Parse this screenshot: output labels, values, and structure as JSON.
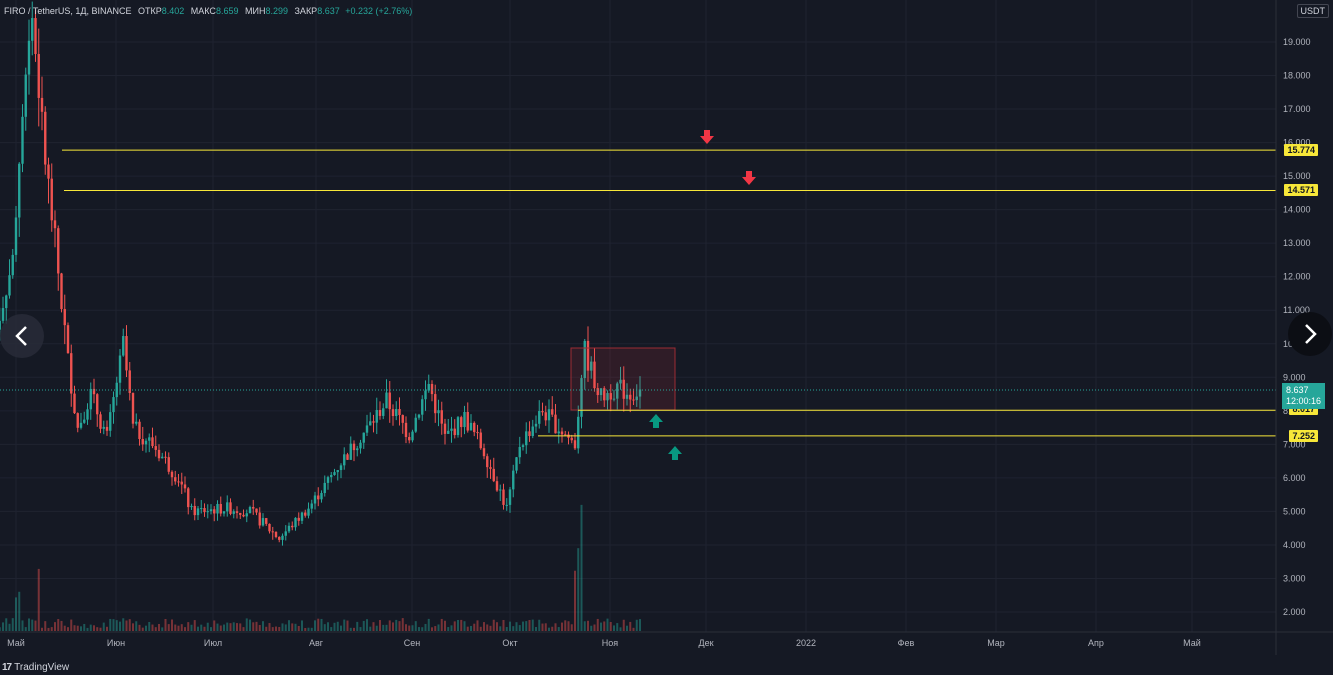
{
  "header": {
    "symbol": "FIRO / TetherUS, 1Д, BINANCE",
    "open_label": "ОТКР",
    "open": "8.402",
    "high_label": "МАКС",
    "high": "8.659",
    "low_label": "МИН",
    "low": "8.299",
    "close_label": "ЗАКР",
    "close": "8.637",
    "change": "+0.232 (+2.76%)"
  },
  "currency": "USDT",
  "brand": "TradingView",
  "current_price": {
    "value": "8.637",
    "countdown": "12:00:16"
  },
  "levels": [
    {
      "value": 15.774,
      "label": "15.774"
    },
    {
      "value": 14.571,
      "label": "14.571"
    },
    {
      "value": 8.017,
      "label": "8.017"
    },
    {
      "value": 7.252,
      "label": "7.252"
    }
  ],
  "colors": {
    "background": "#151924",
    "up": "#26a69a",
    "down": "#ef5350",
    "level_line": "#f7e739",
    "arrow_down": "#f23645",
    "arrow_up": "#089981",
    "grid": "#1f2330"
  },
  "chart_data": {
    "type": "candlestick",
    "y_axis_ticks": [
      "2.000",
      "3.000",
      "4.000",
      "5.000",
      "6.000",
      "7.000",
      "8.000",
      "9.000",
      "10.000",
      "11.000",
      "12.000",
      "13.000",
      "14.000",
      "15.000",
      "16.000",
      "17.000",
      "18.000",
      "19.000"
    ],
    "ylim": [
      1.4,
      20.0
    ],
    "x_axis_labels": [
      "Май",
      "Июн",
      "Июл",
      "Авг",
      "Сен",
      "Окт",
      "Ноя",
      "Дек",
      "2022",
      "Фев",
      "Мар",
      "Апр",
      "Май"
    ],
    "grid": true,
    "price_path": [
      {
        "date": "2021-04-24",
        "close": 10.0
      },
      {
        "date": "2021-04-30",
        "close": 12.5
      },
      {
        "date": "2021-05-04",
        "close": 18.5
      },
      {
        "date": "2021-05-06",
        "close": 19.8
      },
      {
        "date": "2021-05-10",
        "close": 15.5
      },
      {
        "date": "2021-05-13",
        "close": 13.0
      },
      {
        "date": "2021-05-17",
        "close": 9.5
      },
      {
        "date": "2021-05-20",
        "close": 7.5
      },
      {
        "date": "2021-05-24",
        "close": 8.5
      },
      {
        "date": "2021-05-29",
        "close": 7.2
      },
      {
        "date": "2021-06-03",
        "close": 10.0
      },
      {
        "date": "2021-06-06",
        "close": 7.5
      },
      {
        "date": "2021-06-12",
        "close": 7.0
      },
      {
        "date": "2021-06-20",
        "close": 6.0
      },
      {
        "date": "2021-06-24",
        "close": 5.0
      },
      {
        "date": "2021-07-05",
        "close": 5.1
      },
      {
        "date": "2021-07-12",
        "close": 5.0
      },
      {
        "date": "2021-07-21",
        "close": 4.2
      },
      {
        "date": "2021-07-30",
        "close": 5.1
      },
      {
        "date": "2021-08-10",
        "close": 6.6
      },
      {
        "date": "2021-08-18",
        "close": 7.6
      },
      {
        "date": "2021-08-23",
        "close": 8.3
      },
      {
        "date": "2021-08-30",
        "close": 7.3
      },
      {
        "date": "2021-09-05",
        "close": 8.8
      },
      {
        "date": "2021-09-10",
        "close": 7.2
      },
      {
        "date": "2021-09-16",
        "close": 7.8
      },
      {
        "date": "2021-09-22",
        "close": 6.8
      },
      {
        "date": "2021-09-29",
        "close": 5.1
      },
      {
        "date": "2021-10-03",
        "close": 7.0
      },
      {
        "date": "2021-10-10",
        "close": 8.0
      },
      {
        "date": "2021-10-17",
        "close": 7.3
      },
      {
        "date": "2021-10-20",
        "close": 7.0
      },
      {
        "date": "2021-10-23",
        "close": 9.8
      },
      {
        "date": "2021-10-25",
        "close": 9.2
      },
      {
        "date": "2021-10-28",
        "close": 8.4
      },
      {
        "date": "2021-11-02",
        "close": 8.7
      },
      {
        "date": "2021-11-06",
        "close": 8.5
      },
      {
        "date": "2021-11-10",
        "close": 8.637
      }
    ],
    "volume_notes": "Volume histogram at bottom with spikes near early May and late October."
  }
}
